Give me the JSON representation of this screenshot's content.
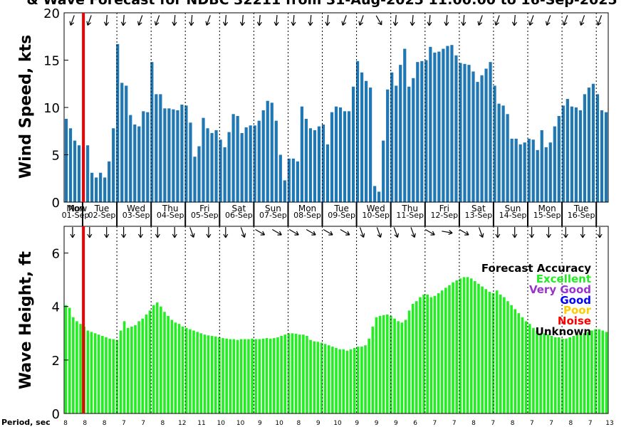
{
  "chart_data": [
    {
      "type": "bar",
      "title": "& Wave Forecast for NDBC 32211 from 31-Aug-2025 11:00:00 to 16-Sep-2025",
      "ylabel": "Wind Speed, kts",
      "ylim": [
        0,
        20
      ],
      "yticks": [
        "0",
        "5",
        "10",
        "15",
        "20"
      ],
      "color": "#1f77b4",
      "current_time_index": 4,
      "day_labels": [
        "Mon",
        "Tue",
        "Wed",
        "Thu",
        "Fri",
        "Sat",
        "Sun",
        "Mon",
        "Tue",
        "Wed",
        "Thu",
        "Fri",
        "Sat",
        "Sun",
        "Mon",
        "Tue"
      ],
      "day_dates": [
        "01-Sep",
        "02-Sep",
        "03-Sep",
        "04-Sep",
        "05-Sep",
        "06-Sep",
        "07-Sep",
        "08-Sep",
        "09-Sep",
        "10-Sep",
        "11-Sep",
        "12-Sep",
        "13-Sep",
        "14-Sep",
        "15-Sep",
        "16-Sep"
      ],
      "today_label": "Now",
      "values": [
        8.8,
        7.8,
        6.5,
        6.0,
        5.8,
        6.0,
        3.1,
        2.6,
        3.1,
        2.6,
        4.3,
        7.8,
        16.7,
        12.6,
        12.3,
        9.2,
        8.2,
        8.0,
        9.6,
        9.5,
        14.8,
        11.4,
        11.4,
        9.9,
        9.9,
        9.8,
        9.7,
        10.3,
        10.2,
        8.4,
        4.8,
        5.9,
        8.9,
        7.8,
        7.3,
        7.6,
        6.6,
        5.8,
        7.4,
        9.3,
        9.1,
        7.3,
        7.9,
        8.1,
        8.1,
        8.6,
        9.7,
        10.7,
        10.5,
        8.6,
        5.0,
        2.3,
        4.6,
        4.6,
        4.3,
        10.1,
        8.8,
        7.8,
        7.6,
        8.0,
        8.2,
        6.1,
        9.5,
        10.1,
        10.0,
        9.6,
        9.6,
        12.2,
        14.9,
        13.7,
        12.8,
        12.1,
        1.7,
        1.1,
        6.5,
        11.9,
        13.7,
        12.3,
        14.5,
        16.2,
        12.2,
        13.1,
        14.8,
        14.9,
        15.0,
        16.4,
        15.8,
        15.9,
        16.2,
        16.5,
        16.6,
        15.5,
        14.7,
        14.6,
        14.5,
        13.8,
        12.7,
        13.4,
        14.1,
        14.8,
        12.3,
        10.4,
        10.2,
        9.3,
        6.7,
        6.7,
        6.1,
        6.3,
        6.7,
        6.6,
        5.5,
        7.6,
        5.8,
        6.3,
        8.0,
        9.1,
        10.2,
        10.9,
        10.1,
        10.0,
        9.7,
        11.4,
        12.1,
        12.5,
        11.4,
        9.7,
        9.5
      ],
      "direction_arrows_deg": [
        200,
        200,
        185,
        185,
        200,
        200,
        185,
        185,
        200,
        185,
        185,
        185,
        185,
        185,
        185,
        185,
        200,
        200,
        150,
        185,
        185,
        185,
        185,
        185,
        200,
        200,
        185,
        200,
        200,
        200,
        200,
        200
      ]
    },
    {
      "type": "bar",
      "ylabel": "Wave Height, ft",
      "ylim": [
        0,
        7
      ],
      "yticks": [
        "0",
        "2",
        "4",
        "6"
      ],
      "color": "#22ee22",
      "values": [
        4.05,
        3.95,
        3.6,
        3.45,
        3.35,
        3.25,
        3.1,
        3.05,
        3.0,
        2.95,
        2.9,
        2.85,
        2.8,
        2.78,
        2.75,
        3.1,
        3.45,
        3.2,
        3.25,
        3.3,
        3.45,
        3.55,
        3.7,
        3.85,
        4.05,
        4.15,
        4.0,
        3.8,
        3.65,
        3.5,
        3.4,
        3.35,
        3.25,
        3.2,
        3.15,
        3.1,
        3.05,
        3.0,
        2.95,
        2.92,
        2.9,
        2.88,
        2.85,
        2.82,
        2.8,
        2.78,
        2.78,
        2.75,
        2.78,
        2.78,
        2.78,
        2.8,
        2.78,
        2.78,
        2.8,
        2.82,
        2.8,
        2.82,
        2.85,
        2.9,
        2.95,
        3.0,
        3.0,
        2.98,
        2.95,
        2.95,
        2.9,
        2.75,
        2.7,
        2.68,
        2.65,
        2.6,
        2.55,
        2.5,
        2.45,
        2.4,
        2.4,
        2.35,
        2.4,
        2.45,
        2.5,
        2.5,
        2.55,
        2.8,
        3.25,
        3.6,
        3.65,
        3.68,
        3.7,
        3.65,
        3.55,
        3.45,
        3.4,
        3.5,
        3.85,
        4.1,
        4.2,
        4.35,
        4.45,
        4.45,
        4.35,
        4.4,
        4.5,
        4.6,
        4.7,
        4.8,
        4.9,
        4.98,
        5.05,
        5.1,
        5.1,
        5.05,
        4.95,
        4.85,
        4.75,
        4.65,
        4.55,
        4.5,
        4.6,
        4.45,
        4.35,
        4.2,
        4.05,
        3.9,
        3.75,
        3.6,
        3.45,
        3.35,
        3.2,
        3.1,
        3.0,
        3.0,
        2.95,
        2.9,
        2.85,
        2.85,
        2.8,
        2.8,
        2.85,
        2.9,
        2.95,
        2.95,
        3.0,
        3.05,
        3.1,
        3.15,
        3.15,
        3.1,
        3.05
      ],
      "direction_arrows_deg": [
        180,
        180,
        180,
        180,
        180,
        180,
        180,
        160,
        180,
        180,
        160,
        120,
        120,
        120,
        120,
        120,
        120,
        160,
        160,
        160,
        160,
        120,
        100,
        120,
        160,
        180,
        180,
        180,
        180,
        180,
        180,
        180
      ],
      "legend": {
        "title": "Forecast Accuracy",
        "items": [
          {
            "label": "Excellent",
            "color": "#22ee22"
          },
          {
            "label": "Very Good",
            "color": "#9933cc"
          },
          {
            "label": "Good",
            "color": "#0000ff"
          },
          {
            "label": "Poor",
            "color": "#ffcc00"
          },
          {
            "label": "Noise",
            "color": "#ff0000"
          },
          {
            "label": "Unknown",
            "color": "#000000"
          }
        ]
      },
      "period_label": "Period, sec",
      "period_values": [
        "8",
        "8",
        "8",
        "7",
        "7",
        "8",
        "12",
        "11",
        "10",
        "10",
        "9",
        "10",
        "8",
        "9",
        "10",
        "9",
        "9",
        "9",
        "6",
        "7",
        "7",
        "8",
        "7",
        "8",
        "7",
        "7",
        "8",
        "7",
        "13"
      ]
    }
  ]
}
